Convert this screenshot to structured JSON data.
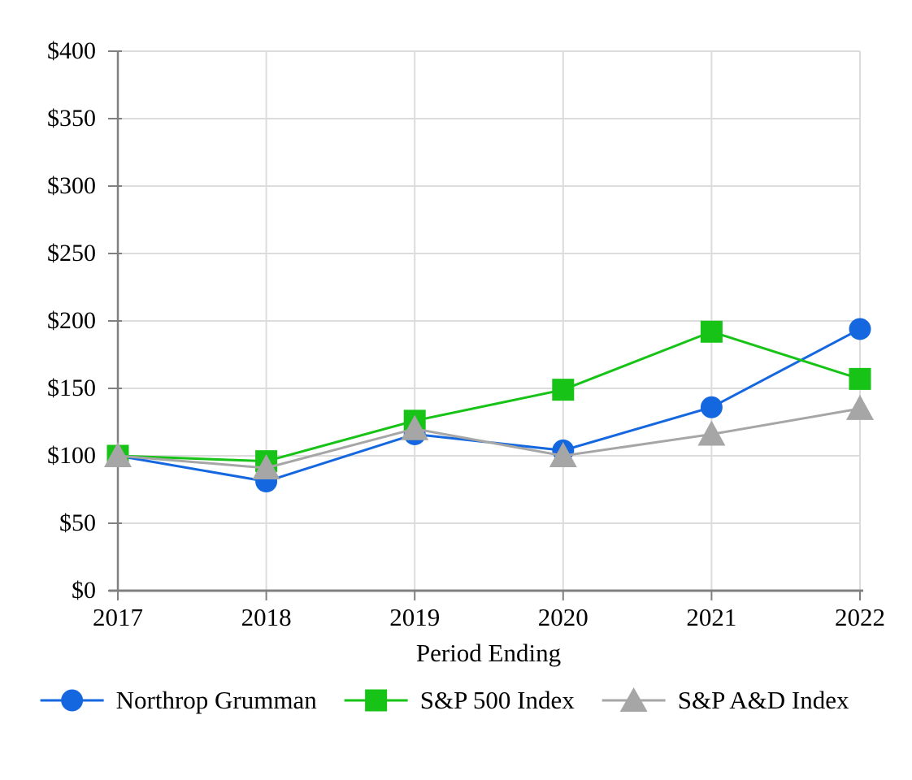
{
  "chart_data": {
    "type": "line",
    "title": "",
    "xlabel": "Period Ending",
    "ylabel": "",
    "categories": [
      "2017",
      "2018",
      "2019",
      "2020",
      "2021",
      "2022"
    ],
    "ylim": [
      0,
      400
    ],
    "y_ticks": [
      0,
      50,
      100,
      150,
      200,
      250,
      300,
      350,
      400
    ],
    "y_tick_labels": [
      "$0",
      "$50",
      "$100",
      "$150",
      "$200",
      "$250",
      "$300",
      "$350",
      "$400"
    ],
    "grid": true,
    "legend_position": "bottom",
    "series": [
      {
        "name": "Northrop Grumman",
        "marker": "circle",
        "color": "#1467DF",
        "values": [
          100,
          81,
          116,
          104,
          136,
          194
        ]
      },
      {
        "name": "S&P 500 Index",
        "marker": "square",
        "color": "#16C316",
        "values": [
          100,
          96,
          126,
          149,
          192,
          157
        ]
      },
      {
        "name": "S&P A&D Index",
        "marker": "triangle",
        "color": "#A6A6A6",
        "values": [
          100,
          91,
          120,
          100,
          116,
          135
        ]
      }
    ],
    "axis_color": "#808080",
    "gridline_color": "#DCDCDC",
    "text_color": "#000000",
    "background": "#FFFFFF"
  }
}
